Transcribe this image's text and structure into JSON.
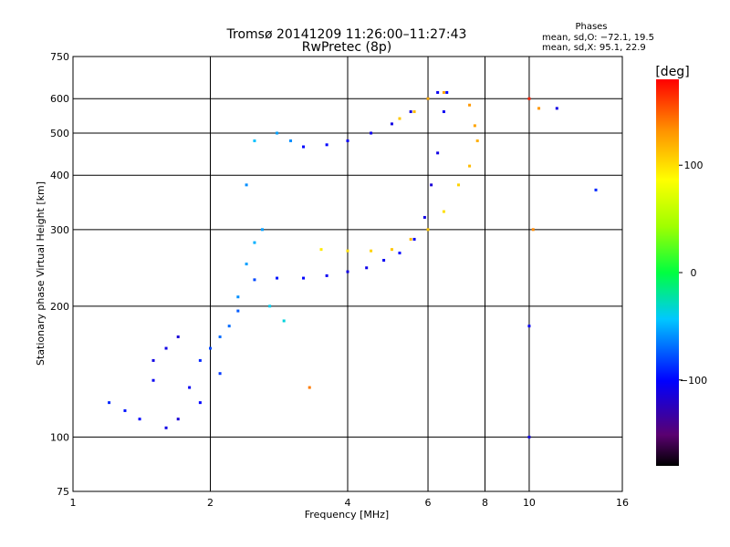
{
  "chart_data": {
    "type": "scatter",
    "title": "Tromsø 20141209 11:26:00–11:27:43",
    "subtitle": "RwPretec (8p)",
    "xlabel": "Frequency [MHz]",
    "ylabel": "Stationary phase Virtual Height [km]",
    "x_scale": "log",
    "y_scale": "log",
    "xlim": [
      1,
      16
    ],
    "ylim": [
      75,
      750
    ],
    "grid": true,
    "x_ticks": [
      1,
      2,
      4,
      6,
      8,
      10,
      16
    ],
    "x_tick_labels": [
      "1",
      "2",
      "4",
      "6",
      "8",
      "10",
      "16"
    ],
    "y_ticks": [
      75,
      100,
      200,
      300,
      400,
      500,
      600,
      750
    ],
    "y_tick_labels": [
      "75",
      "100",
      "200",
      "300",
      "400",
      "500",
      "600",
      "750"
    ],
    "stats": {
      "heading": "Phases",
      "line_o": "mean, sd,O: −72.1, 19.5",
      "line_x": "mean, sd,X:  95.1, 22.9"
    },
    "colorbar": {
      "label": "[deg]",
      "min": -180,
      "max": 180,
      "ticks": [
        100,
        0,
        -100
      ],
      "tick_labels": [
        "100",
        "0",
        "−100"
      ],
      "colormap": "rainbow (black→purple→blue→cyan→green→yellow→orange→red)"
    },
    "series": [
      {
        "points": [
          [
            1.6,
            105,
            -110
          ],
          [
            1.7,
            110,
            -115
          ],
          [
            1.8,
            130,
            -105
          ],
          [
            1.9,
            150,
            -90
          ],
          [
            2.0,
            160,
            -80
          ],
          [
            2.1,
            170,
            -70
          ],
          [
            2.3,
            195,
            -75
          ],
          [
            2.5,
            230,
            -80
          ],
          [
            2.8,
            232,
            -95
          ],
          [
            3.2,
            232,
            -100
          ],
          [
            3.6,
            235,
            -105
          ],
          [
            4.0,
            240,
            -110
          ],
          [
            4.4,
            245,
            -108
          ],
          [
            4.8,
            255,
            -105
          ],
          [
            5.2,
            265,
            -100
          ],
          [
            5.6,
            285,
            -105
          ],
          [
            5.9,
            320,
            -110
          ],
          [
            6.1,
            380,
            -115
          ],
          [
            6.3,
            450,
            -110
          ],
          [
            6.5,
            560,
            -105
          ],
          [
            6.6,
            620,
            -100
          ]
        ]
      },
      {
        "points": [
          [
            3.5,
            270,
            95
          ],
          [
            4.0,
            268,
            100
          ],
          [
            4.5,
            268,
            105
          ],
          [
            5.0,
            270,
            110
          ],
          [
            5.5,
            285,
            115
          ],
          [
            6.0,
            300,
            110
          ],
          [
            6.5,
            330,
            100
          ],
          [
            7.0,
            380,
            105
          ],
          [
            7.4,
            420,
            115
          ],
          [
            7.7,
            480,
            120
          ],
          [
            7.6,
            520,
            125
          ],
          [
            7.4,
            580,
            130
          ]
        ]
      },
      {
        "points": [
          [
            3.2,
            465,
            -100
          ],
          [
            3.6,
            470,
            -100
          ],
          [
            4.0,
            480,
            -105
          ],
          [
            4.5,
            500,
            -108
          ],
          [
            5.0,
            525,
            -110
          ],
          [
            5.5,
            560,
            -112
          ],
          [
            6.0,
            600,
            -110
          ],
          [
            6.3,
            620,
            -105
          ]
        ]
      },
      {
        "points": [
          [
            5.2,
            540,
            110
          ],
          [
            5.6,
            560,
            115
          ],
          [
            6.0,
            600,
            120
          ],
          [
            6.5,
            620,
            125
          ]
        ]
      },
      {
        "points": [
          [
            1.2,
            120,
            -90
          ],
          [
            1.3,
            115,
            -95
          ],
          [
            1.4,
            110,
            -100
          ],
          [
            1.5,
            135,
            -105
          ],
          [
            1.6,
            160,
            -110
          ],
          [
            1.7,
            170,
            -115
          ],
          [
            1.5,
            150,
            -110
          ],
          [
            1.9,
            120,
            -100
          ],
          [
            2.1,
            140,
            -85
          ],
          [
            2.2,
            180,
            -70
          ],
          [
            2.3,
            210,
            -60
          ],
          [
            2.4,
            250,
            -55
          ],
          [
            2.5,
            280,
            -50
          ],
          [
            2.6,
            300,
            -55
          ],
          [
            2.4,
            380,
            -60
          ],
          [
            2.5,
            480,
            -45
          ],
          [
            2.8,
            500,
            -55
          ],
          [
            3.0,
            480,
            -60
          ],
          [
            2.7,
            200,
            -40
          ],
          [
            2.9,
            185,
            -35
          ],
          [
            3.3,
            130,
            140
          ]
        ]
      },
      {
        "points": [
          [
            10.0,
            600,
            170
          ],
          [
            10.5,
            570,
            130
          ],
          [
            11.5,
            570,
            -110
          ],
          [
            14.0,
            370,
            -90
          ],
          [
            10.0,
            100,
            -110
          ],
          [
            10.0,
            180,
            -105
          ],
          [
            10.2,
            300,
            135
          ]
        ]
      }
    ]
  }
}
